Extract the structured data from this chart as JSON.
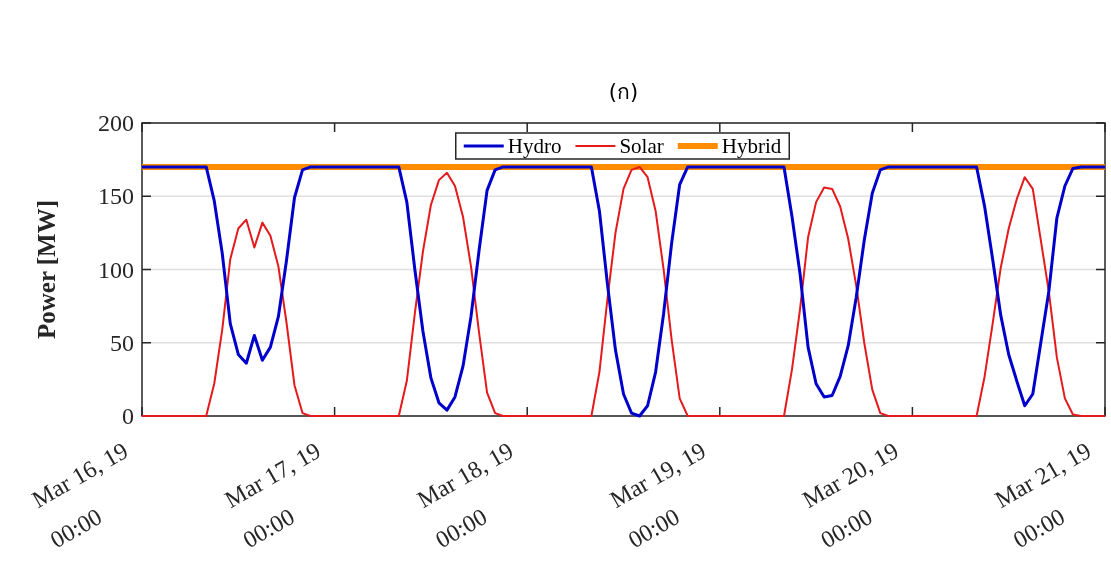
{
  "chart_data": {
    "type": "line",
    "title": "(ก)",
    "ylabel": "Power [MW]",
    "x": [
      "--03-16T00:00",
      "--03-16T01:00",
      "--03-16T02:00",
      "--03-16T03:00",
      "--03-16T04:00",
      "--03-16T05:00",
      "--03-16T06:00",
      "--03-16T07:00",
      "--03-16T08:00",
      "--03-16T09:00",
      "--03-16T10:00",
      "--03-16T11:00",
      "--03-16T12:00",
      "--03-16T13:00",
      "--03-16T14:00",
      "--03-16T15:00",
      "--03-16T16:00",
      "--03-16T17:00",
      "--03-16T18:00",
      "--03-16T19:00",
      "--03-16T20:00",
      "--03-16T21:00",
      "--03-16T22:00",
      "--03-16T23:00",
      "--03-17T00:00",
      "--03-17T01:00",
      "--03-17T02:00",
      "--03-17T03:00",
      "--03-17T04:00",
      "--03-17T05:00",
      "--03-17T06:00",
      "--03-17T07:00",
      "--03-17T08:00",
      "--03-17T09:00",
      "--03-17T10:00",
      "--03-17T11:00",
      "--03-17T12:00",
      "--03-17T13:00",
      "--03-17T14:00",
      "--03-17T15:00",
      "--03-17T16:00",
      "--03-17T17:00",
      "--03-17T18:00",
      "--03-17T19:00",
      "--03-17T20:00",
      "--03-17T21:00",
      "--03-17T22:00",
      "--03-17T23:00",
      "--03-18T00:00",
      "--03-18T01:00",
      "--03-18T02:00",
      "--03-18T03:00",
      "--03-18T04:00",
      "--03-18T05:00",
      "--03-18T06:00",
      "--03-18T07:00",
      "--03-18T08:00",
      "--03-18T09:00",
      "--03-18T10:00",
      "--03-18T11:00",
      "--03-18T12:00",
      "--03-18T13:00",
      "--03-18T14:00",
      "--03-18T15:00",
      "--03-18T16:00",
      "--03-18T17:00",
      "--03-18T18:00",
      "--03-18T19:00",
      "--03-18T20:00",
      "--03-18T21:00",
      "--03-18T22:00",
      "--03-18T23:00",
      "--03-19T00:00",
      "--03-19T01:00",
      "--03-19T02:00",
      "--03-19T03:00",
      "--03-19T04:00",
      "--03-19T05:00",
      "--03-19T06:00",
      "--03-19T07:00",
      "--03-19T08:00",
      "--03-19T09:00",
      "--03-19T10:00",
      "--03-19T11:00",
      "--03-19T12:00",
      "--03-19T13:00",
      "--03-19T14:00",
      "--03-19T15:00",
      "--03-19T16:00",
      "--03-19T17:00",
      "--03-19T18:00",
      "--03-19T19:00",
      "--03-19T20:00",
      "--03-19T21:00",
      "--03-19T22:00",
      "--03-19T23:00",
      "--03-20T00:00",
      "--03-20T01:00",
      "--03-20T02:00",
      "--03-20T03:00",
      "--03-20T04:00",
      "--03-20T05:00",
      "--03-20T06:00",
      "--03-20T07:00",
      "--03-20T08:00",
      "--03-20T09:00",
      "--03-20T10:00",
      "--03-20T11:00",
      "--03-20T12:00",
      "--03-20T13:00",
      "--03-20T14:00",
      "--03-20T15:00",
      "--03-20T16:00",
      "--03-20T17:00",
      "--03-20T18:00",
      "--03-20T19:00",
      "--03-20T20:00",
      "--03-20T21:00",
      "--03-20T22:00",
      "--03-20T23:00",
      "--03-21T00:00"
    ],
    "series": [
      {
        "name": "Hydro",
        "color": "#0000cc",
        "values": [
          170,
          170,
          170,
          170,
          170,
          170,
          170,
          170,
          170,
          147,
          111,
          63,
          42,
          36,
          55,
          38,
          47,
          68,
          106,
          149,
          168,
          170,
          170,
          170,
          170,
          170,
          170,
          170,
          170,
          170,
          170,
          170,
          170,
          146,
          100,
          58,
          26,
          9,
          4,
          13,
          34,
          68,
          113,
          154,
          168,
          170,
          170,
          170,
          170,
          170,
          170,
          170,
          170,
          170,
          170,
          170,
          170,
          140,
          90,
          45,
          15,
          2,
          0,
          7,
          30,
          70,
          118,
          158,
          170,
          170,
          170,
          170,
          170,
          170,
          170,
          170,
          170,
          170,
          170,
          170,
          170,
          136,
          97,
          47,
          22,
          13,
          14,
          27,
          48,
          81,
          120,
          152,
          168,
          170,
          170,
          170,
          170,
          170,
          170,
          170,
          170,
          170,
          170,
          170,
          170,
          143,
          107,
          69,
          42,
          24,
          7,
          15,
          50,
          85,
          135,
          157,
          169,
          170,
          170,
          170,
          170
        ]
      },
      {
        "name": "Solar",
        "color": "#e41a1c",
        "values": [
          0,
          0,
          0,
          0,
          0,
          0,
          0,
          0,
          0,
          22,
          59,
          107,
          128,
          134,
          115,
          132,
          123,
          102,
          64,
          21,
          2,
          0,
          0,
          0,
          0,
          0,
          0,
          0,
          0,
          0,
          0,
          0,
          0,
          24,
          70,
          112,
          144,
          161,
          166,
          157,
          136,
          102,
          57,
          16,
          2,
          0,
          0,
          0,
          0,
          0,
          0,
          0,
          0,
          0,
          0,
          0,
          0,
          30,
          80,
          125,
          155,
          168,
          170,
          163,
          140,
          100,
          52,
          12,
          0,
          0,
          0,
          0,
          0,
          0,
          0,
          0,
          0,
          0,
          0,
          0,
          0,
          32,
          73,
          122,
          146,
          156,
          155,
          143,
          121,
          89,
          50,
          18,
          2,
          0,
          0,
          0,
          0,
          0,
          0,
          0,
          0,
          0,
          0,
          0,
          0,
          27,
          63,
          101,
          128,
          148,
          163,
          155,
          120,
          85,
          40,
          12,
          1,
          0,
          0,
          0,
          0
        ]
      },
      {
        "name": "Hybrid",
        "color": "#ff8c00",
        "x": [
          "--03-16T00:00",
          "--03-21T00:00"
        ],
        "values": [
          170,
          170
        ]
      }
    ],
    "xlim": [
      "--03-16T00:00",
      "--03-21T00:00"
    ],
    "xticks": [
      {
        "value": "--03-16T00:00",
        "label": "Mar 16, 19\n00:00"
      },
      {
        "value": "--03-17T00:00",
        "label": "Mar 17, 19\n00:00"
      },
      {
        "value": "--03-18T00:00",
        "label": "Mar 18, 19\n00:00"
      },
      {
        "value": "--03-19T00:00",
        "label": "Mar 19, 19\n00:00"
      },
      {
        "value": "--03-20T00:00",
        "label": "Mar 20, 19\n00:00"
      },
      {
        "value": "--03-21T00:00",
        "label": "Mar 21, 19\n00:00"
      }
    ],
    "ylim": [
      0,
      200
    ],
    "yticks": [
      0,
      50,
      100,
      150,
      200
    ],
    "grid": "y",
    "legend": "top",
    "line_style": "solid"
  }
}
